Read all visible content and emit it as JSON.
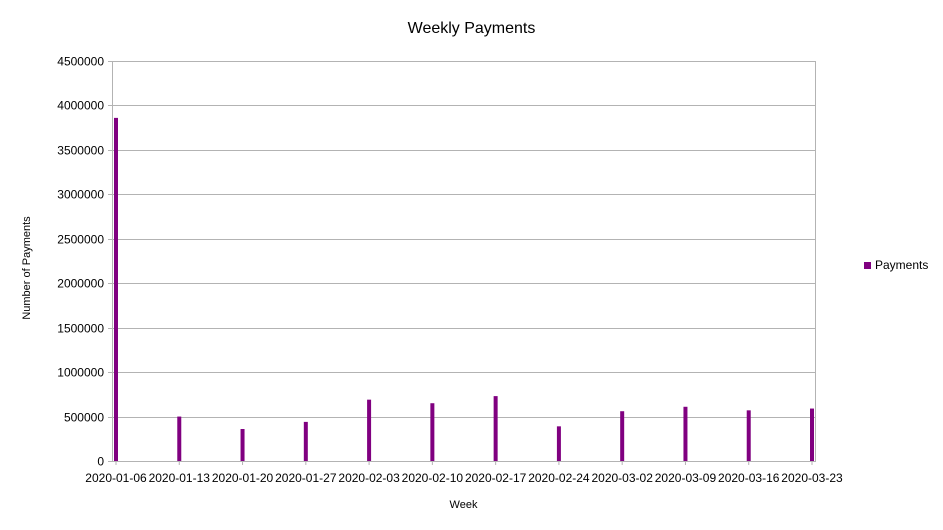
{
  "chart_data": {
    "type": "bar",
    "title": "Weekly Payments",
    "xlabel": "Week",
    "ylabel": "Number of Payments",
    "categories": [
      "2020-01-06",
      "2020-01-13",
      "2020-01-20",
      "2020-01-27",
      "2020-02-03",
      "2020-02-10",
      "2020-02-17",
      "2020-02-24",
      "2020-03-02",
      "2020-03-09",
      "2020-03-16",
      "2020-03-23"
    ],
    "series": [
      {
        "name": "Payments",
        "color": "#800080",
        "values": [
          3860000,
          500000,
          360000,
          440000,
          690000,
          650000,
          730000,
          390000,
          560000,
          610000,
          570000,
          590000
        ]
      }
    ],
    "ylim": [
      0,
      4500000
    ],
    "yticks": [
      0,
      500000,
      1000000,
      1500000,
      2000000,
      2500000,
      3000000,
      3500000,
      4000000,
      4500000
    ],
    "grid": true,
    "legend_position": "right"
  }
}
